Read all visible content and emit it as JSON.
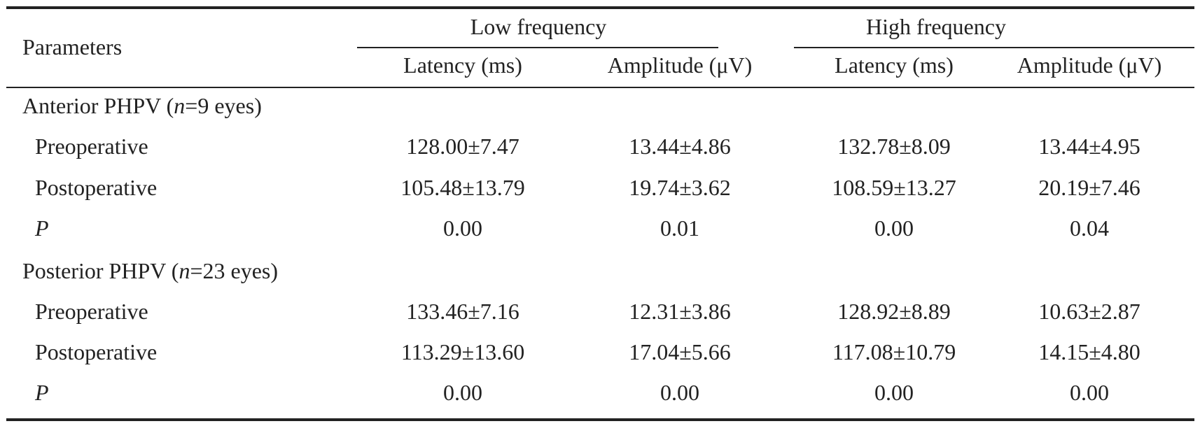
{
  "table": {
    "header": {
      "parameters": "Parameters",
      "groups": [
        "Low frequency",
        "High frequency"
      ],
      "subcolumns": [
        "Latency (ms)",
        "Amplitude (μV)",
        "Latency (ms)",
        "Amplitude (μV)"
      ]
    },
    "sections": [
      {
        "title_prefix": "Anterior PHPV (",
        "title_n": "n",
        "title_suffix": "=9 eyes)",
        "rows": [
          {
            "label": "Preoperative",
            "values": [
              "128.00±7.47",
              "13.44±4.86",
              "132.78±8.09",
              "13.44±4.95"
            ]
          },
          {
            "label": "Postoperative",
            "values": [
              "105.48±13.79",
              "19.74±3.62",
              "108.59±13.27",
              "20.19±7.46"
            ]
          },
          {
            "label": "P",
            "values": [
              "0.00",
              "0.01",
              "0.00",
              "0.04"
            ]
          }
        ]
      },
      {
        "title_prefix": "Posterior PHPV (",
        "title_n": "n",
        "title_suffix": "=23 eyes)",
        "rows": [
          {
            "label": "Preoperative",
            "values": [
              "133.46±7.16",
              "12.31±3.86",
              "128.92±8.89",
              "10.63±2.87"
            ]
          },
          {
            "label": "Postoperative",
            "values": [
              "113.29±13.60",
              "17.04±5.66",
              "117.08±10.79",
              "14.15±4.80"
            ]
          },
          {
            "label": "P",
            "values": [
              "0.00",
              "0.00",
              "0.00",
              "0.00"
            ]
          }
        ]
      }
    ]
  }
}
